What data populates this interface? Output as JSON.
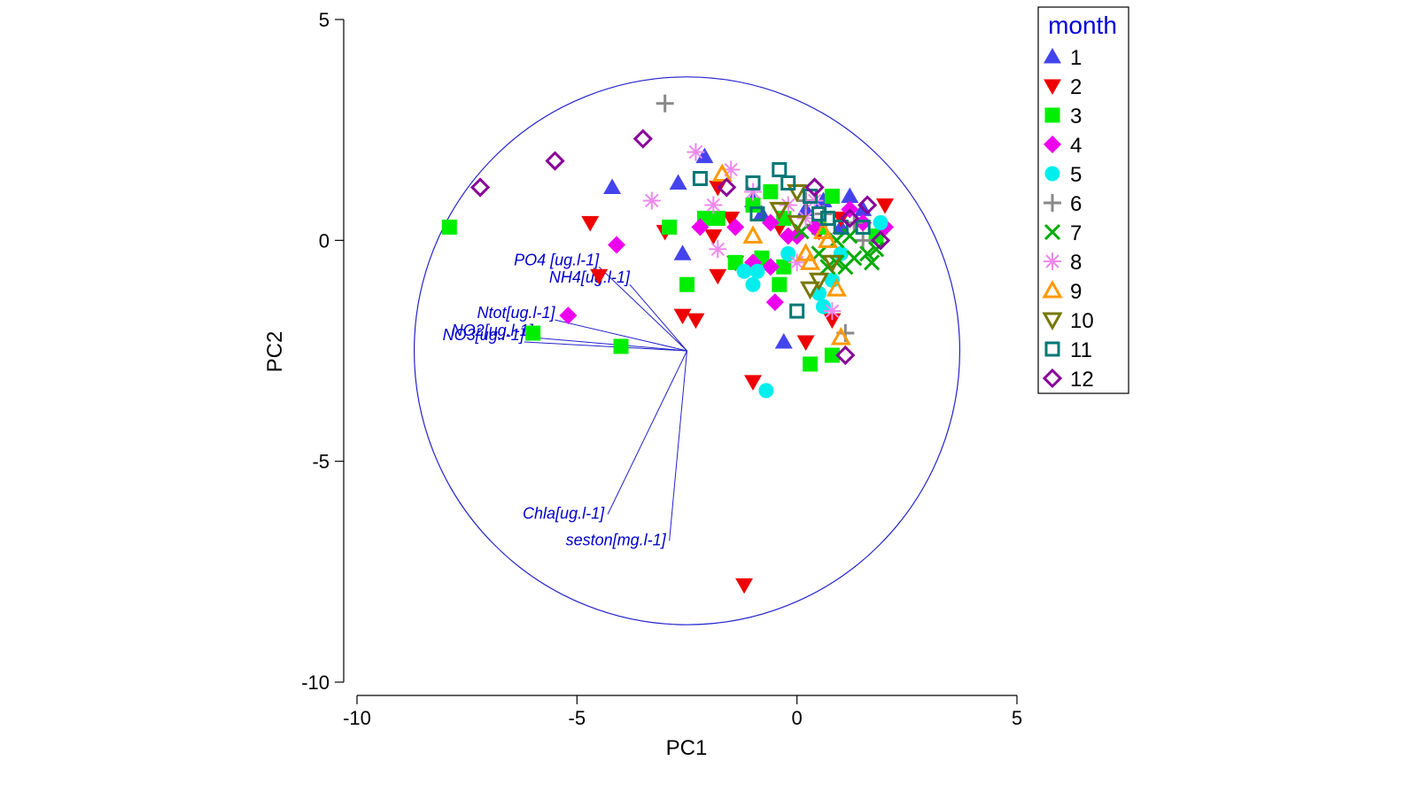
{
  "chart_data": {
    "type": "scatter",
    "title": "",
    "xlabel": "PC1",
    "ylabel": "PC2",
    "xlim": [
      -10,
      5
    ],
    "ylim": [
      -10,
      5
    ],
    "x_ticks": [
      "-10",
      "-5",
      "0",
      "5"
    ],
    "y_ticks": [
      "5",
      "0",
      "-5",
      "-10"
    ],
    "legend": {
      "title": "month",
      "placement": "right"
    },
    "circle": {
      "center": [
        -2.5,
        -2.5
      ],
      "radius": 6.2
    },
    "vectors_origin": [
      -2.5,
      -2.5
    ],
    "vectors": [
      {
        "label": "PO4 [ug.l-1]",
        "end": [
          -4.5,
          -0.6
        ]
      },
      {
        "label": "NH4[ug.l-1]",
        "end": [
          -3.8,
          -1.0
        ]
      },
      {
        "label": "Ntot[ug.l-1]",
        "end": [
          -5.5,
          -1.8
        ]
      },
      {
        "label": "NO2[ug.l-1]",
        "end": [
          -6.0,
          -2.2
        ]
      },
      {
        "label": "NO3[ug.l-1]",
        "end": [
          -6.2,
          -2.3
        ]
      },
      {
        "label": "Chla[ug.l-1]",
        "end": [
          -4.3,
          -6.2
        ]
      },
      {
        "label": "seston[mg.l-1]",
        "end": [
          -2.9,
          -6.8
        ]
      }
    ],
    "series": [
      {
        "name": "1",
        "color": "#4444ee",
        "marker": "triangle-up-filled",
        "points": [
          [
            -4.2,
            1.2
          ],
          [
            -2.1,
            1.9
          ],
          [
            -2.7,
            1.3
          ],
          [
            -2.6,
            -0.3
          ],
          [
            -0.3,
            -2.3
          ],
          [
            -1.0,
            0.9
          ],
          [
            0.2,
            0.7
          ],
          [
            0.6,
            0.9
          ],
          [
            1.2,
            1.0
          ],
          [
            1.0,
            0.3
          ],
          [
            -0.8,
            0.6
          ],
          [
            1.5,
            0.7
          ]
        ]
      },
      {
        "name": "2",
        "color": "#ee0000",
        "marker": "triangle-down-filled",
        "points": [
          [
            -4.7,
            0.4
          ],
          [
            -4.5,
            -0.8
          ],
          [
            -3.0,
            0.2
          ],
          [
            -2.6,
            -1.7
          ],
          [
            -1.8,
            -0.8
          ],
          [
            -1.8,
            1.2
          ],
          [
            -1.5,
            0.5
          ],
          [
            -2.3,
            -1.8
          ],
          [
            -1.9,
            0.1
          ],
          [
            -1.4,
            -0.5
          ],
          [
            -1.0,
            -3.2
          ],
          [
            -1.2,
            -7.8
          ],
          [
            0.2,
            -2.3
          ],
          [
            0.8,
            -1.8
          ],
          [
            1.0,
            0.5
          ],
          [
            2.0,
            0.8
          ],
          [
            0.5,
            0.2
          ],
          [
            -0.4,
            0.3
          ]
        ]
      },
      {
        "name": "3",
        "color": "#00ee00",
        "marker": "square-filled",
        "points": [
          [
            -7.9,
            0.3
          ],
          [
            -6.0,
            -2.1
          ],
          [
            -4.0,
            -2.4
          ],
          [
            -2.9,
            0.3
          ],
          [
            -2.5,
            -1.0
          ],
          [
            -2.1,
            0.5
          ],
          [
            -1.8,
            0.5
          ],
          [
            -1.4,
            -0.5
          ],
          [
            -1.0,
            0.8
          ],
          [
            -0.6,
            1.1
          ],
          [
            -0.4,
            -1.0
          ],
          [
            -0.3,
            -0.6
          ],
          [
            0.3,
            -2.8
          ],
          [
            0.8,
            -2.6
          ],
          [
            0.8,
            1.0
          ],
          [
            -0.8,
            -0.4
          ],
          [
            1.8,
            0.1
          ],
          [
            -0.3,
            0.5
          ],
          [
            0.5,
            0.3
          ]
        ]
      },
      {
        "name": "4",
        "color": "#ee00ee",
        "marker": "diamond-filled",
        "points": [
          [
            -5.2,
            -1.7
          ],
          [
            -4.1,
            -0.1
          ],
          [
            -2.2,
            0.3
          ],
          [
            -1.4,
            0.3
          ],
          [
            -1.0,
            -0.5
          ],
          [
            -0.6,
            0.4
          ],
          [
            -0.5,
            -1.4
          ],
          [
            -0.6,
            -0.6
          ],
          [
            0.0,
            0.1
          ],
          [
            0.4,
            0.3
          ],
          [
            1.2,
            0.7
          ],
          [
            1.5,
            0.4
          ],
          [
            2.0,
            0.3
          ],
          [
            -0.2,
            0.1
          ]
        ]
      },
      {
        "name": "5",
        "color": "#00eeee",
        "marker": "circle-filled",
        "points": [
          [
            -1.2,
            -0.7
          ],
          [
            -1.0,
            -1.0
          ],
          [
            -0.9,
            -0.7
          ],
          [
            -0.7,
            -3.4
          ],
          [
            -0.2,
            -0.3
          ],
          [
            0.5,
            -1.2
          ],
          [
            0.6,
            -1.5
          ],
          [
            0.8,
            -0.9
          ],
          [
            1.0,
            -0.3
          ],
          [
            1.9,
            0.4
          ]
        ]
      },
      {
        "name": "6",
        "color": "#888888",
        "marker": "plus",
        "points": [
          [
            -3.0,
            3.1
          ],
          [
            1.1,
            -2.1
          ],
          [
            0.6,
            0.6
          ],
          [
            1.5,
            0.0
          ],
          [
            0.2,
            0.9
          ],
          [
            1.3,
            0.4
          ]
        ]
      },
      {
        "name": "7",
        "color": "#00aa00",
        "marker": "cross",
        "points": [
          [
            0.1,
            0.2
          ],
          [
            0.5,
            -0.3
          ],
          [
            0.7,
            -0.6
          ],
          [
            0.9,
            -0.5
          ],
          [
            1.1,
            -0.6
          ],
          [
            1.3,
            -0.4
          ],
          [
            1.6,
            -0.3
          ],
          [
            1.7,
            -0.5
          ],
          [
            1.8,
            -0.2
          ],
          [
            0.9,
            0.0
          ],
          [
            1.2,
            0.1
          ]
        ]
      },
      {
        "name": "8",
        "color": "#ee88ee",
        "marker": "asterisk",
        "points": [
          [
            -3.3,
            0.9
          ],
          [
            -2.3,
            2.0
          ],
          [
            -1.5,
            1.6
          ],
          [
            -1.9,
            0.8
          ],
          [
            -1.8,
            -0.2
          ],
          [
            -1.0,
            1.1
          ],
          [
            -0.2,
            0.8
          ],
          [
            0.0,
            -0.5
          ],
          [
            0.8,
            -1.6
          ],
          [
            0.2,
            0.5
          ],
          [
            0.4,
            0.9
          ]
        ]
      },
      {
        "name": "9",
        "color": "#ff9900",
        "marker": "triangle-up-open",
        "points": [
          [
            -1.7,
            1.5
          ],
          [
            -1.0,
            0.1
          ],
          [
            0.3,
            -0.5
          ],
          [
            0.7,
            0.0
          ],
          [
            0.9,
            -1.1
          ],
          [
            1.0,
            -2.2
          ],
          [
            0.2,
            -0.3
          ],
          [
            0.6,
            0.2
          ]
        ]
      },
      {
        "name": "10",
        "color": "#777700",
        "marker": "triangle-down-open",
        "points": [
          [
            -0.4,
            0.7
          ],
          [
            0.0,
            1.1
          ],
          [
            0.3,
            -1.1
          ],
          [
            0.5,
            -0.9
          ],
          [
            0.8,
            -0.5
          ],
          [
            0.0,
            0.4
          ]
        ]
      },
      {
        "name": "11",
        "color": "#007777",
        "marker": "square-open",
        "points": [
          [
            -2.2,
            1.4
          ],
          [
            -1.0,
            1.3
          ],
          [
            -0.4,
            1.6
          ],
          [
            -0.2,
            1.3
          ],
          [
            0.0,
            -1.6
          ],
          [
            0.3,
            1.0
          ],
          [
            0.5,
            0.6
          ],
          [
            1.0,
            0.3
          ],
          [
            1.5,
            0.3
          ],
          [
            0.7,
            0.5
          ],
          [
            -0.9,
            0.6
          ]
        ]
      },
      {
        "name": "12",
        "color": "#880099",
        "marker": "diamond-open",
        "points": [
          [
            -7.2,
            1.2
          ],
          [
            -5.5,
            1.8
          ],
          [
            -3.5,
            2.3
          ],
          [
            -1.6,
            1.2
          ],
          [
            0.4,
            1.2
          ],
          [
            1.2,
            0.5
          ],
          [
            1.6,
            0.8
          ],
          [
            1.9,
            0.0
          ],
          [
            1.1,
            -2.6
          ]
        ]
      }
    ]
  }
}
